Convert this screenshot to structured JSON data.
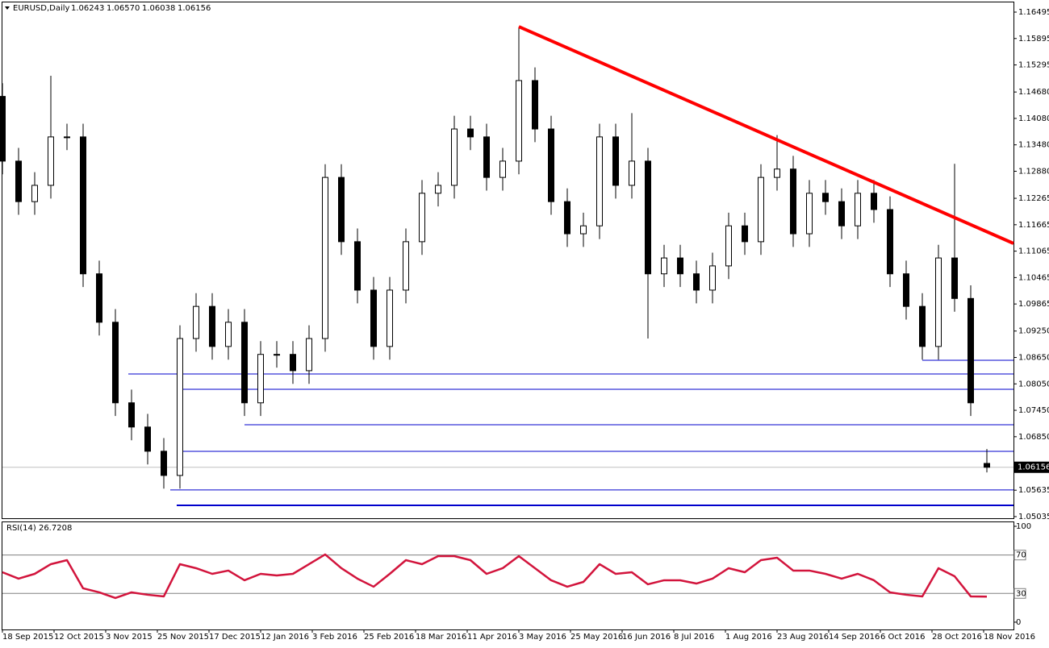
{
  "chart_data": [
    {
      "type": "candlestick",
      "title": "EURUSD,Daily",
      "quote": [
        "1.06243",
        "1.06570",
        "1.06038",
        "1.06156"
      ],
      "x": [
        0,
        5,
        10,
        15,
        20,
        25,
        30,
        35,
        40,
        45,
        50,
        55,
        60,
        65,
        70,
        75,
        80,
        85,
        90,
        95,
        100,
        105,
        110,
        115,
        120,
        125,
        130,
        135,
        140,
        145,
        150,
        155,
        160,
        165,
        170,
        175,
        180,
        185,
        190,
        195,
        200,
        205,
        210,
        215,
        220,
        225,
        230,
        235,
        240,
        245,
        250,
        255,
        260,
        265,
        270,
        275,
        280,
        285,
        290,
        295,
        300,
        305
      ],
      "open": [
        1.1458,
        1.1311,
        1.1219,
        1.1256,
        1.1366,
        1.1366,
        1.1055,
        1.0945,
        1.0762,
        1.0707,
        1.0652,
        1.0597,
        1.0908,
        1.0981,
        1.089,
        1.0945,
        1.0762,
        1.0872,
        1.0872,
        1.0835,
        1.0908,
        1.1274,
        1.1128,
        1.1018,
        1.089,
        1.1018,
        1.1128,
        1.1238,
        1.1256,
        1.1384,
        1.1366,
        1.1274,
        1.1311,
        1.1494,
        1.1384,
        1.1219,
        1.1146,
        1.1164,
        1.1366,
        1.1256,
        1.1311,
        1.1055,
        1.1091,
        1.1055,
        1.1018,
        1.1073,
        1.1164,
        1.1128,
        1.1274,
        1.1293,
        1.1146,
        1.1238,
        1.1219,
        1.1164,
        1.1238,
        1.1201,
        1.1055,
        1.0981,
        1.089,
        1.1091,
        1.0999,
        1.06243
      ],
      "high": [
        1.1488,
        1.1341,
        1.1286,
        1.1505,
        1.1396,
        1.1396,
        1.1085,
        1.0975,
        1.0792,
        1.0737,
        1.0682,
        1.0938,
        1.1011,
        1.1011,
        1.0975,
        1.0975,
        1.0902,
        1.0902,
        1.0902,
        1.0938,
        1.1304,
        1.1304,
        1.1158,
        1.1048,
        1.1048,
        1.1158,
        1.1268,
        1.1286,
        1.1414,
        1.1414,
        1.1396,
        1.1341,
        1.1616,
        1.1524,
        1.1414,
        1.1249,
        1.1194,
        1.1396,
        1.1396,
        1.142,
        1.1341,
        1.1121,
        1.1121,
        1.1085,
        1.1103,
        1.1194,
        1.1194,
        1.1304,
        1.137,
        1.1323,
        1.1268,
        1.1268,
        1.1249,
        1.1268,
        1.1268,
        1.1231,
        1.1085,
        1.1011,
        1.1121,
        1.1305,
        1.1029,
        1.0657
      ],
      "low": [
        1.1281,
        1.1189,
        1.1189,
        1.1226,
        1.1336,
        1.1025,
        1.0915,
        1.0732,
        1.0677,
        1.0622,
        1.0567,
        1.0567,
        1.0878,
        1.086,
        1.086,
        1.0732,
        1.0732,
        1.0842,
        1.0805,
        1.0805,
        1.0878,
        1.1098,
        1.0988,
        1.086,
        1.086,
        1.0988,
        1.1098,
        1.1208,
        1.1226,
        1.1336,
        1.1244,
        1.1244,
        1.1281,
        1.1354,
        1.1189,
        1.1116,
        1.1116,
        1.1134,
        1.1226,
        1.1226,
        1.0908,
        1.1025,
        1.1025,
        1.0988,
        1.0988,
        1.1043,
        1.1098,
        1.1098,
        1.1244,
        1.1116,
        1.1116,
        1.1189,
        1.1134,
        1.1134,
        1.1171,
        1.1025,
        1.0951,
        1.086,
        1.086,
        1.0969,
        1.0732,
        1.0604
      ],
      "close": [
        1.1311,
        1.1219,
        1.1256,
        1.1366,
        1.1366,
        1.1055,
        1.0945,
        1.0762,
        1.0707,
        1.0652,
        1.0597,
        1.0908,
        1.0981,
        1.089,
        1.0945,
        1.0762,
        1.0872,
        1.0872,
        1.0835,
        1.0908,
        1.1274,
        1.1128,
        1.1018,
        1.089,
        1.1018,
        1.1128,
        1.1238,
        1.1256,
        1.1384,
        1.1366,
        1.1274,
        1.1311,
        1.1494,
        1.1384,
        1.1219,
        1.1146,
        1.1164,
        1.1366,
        1.1256,
        1.1311,
        1.1055,
        1.1091,
        1.1055,
        1.1018,
        1.1073,
        1.1164,
        1.1128,
        1.1274,
        1.1293,
        1.1146,
        1.1238,
        1.1219,
        1.1164,
        1.1238,
        1.1201,
        1.1055,
        1.0981,
        1.089,
        1.1091,
        1.0999,
        1.0762,
        1.06156
      ],
      "xlim": [
        0,
        313.25
      ],
      "ylim": [
        1.04998,
        1.16715
      ],
      "yticks": [
        1.16495,
        1.15895,
        1.15295,
        {
          "value": 1.1468,
          "label": "1.14680"
        },
        {
          "value": 1.1408,
          "label": "1.14080"
        },
        {
          "value": 1.1348,
          "label": "1.13480"
        },
        {
          "value": 1.1288,
          "label": "1.12880"
        },
        1.12265,
        1.11665,
        1.11065,
        1.10465,
        1.09865,
        {
          "value": 1.0925,
          "label": "1.09250"
        },
        {
          "value": 1.0865,
          "label": "1.08650"
        },
        {
          "value": 1.0805,
          "label": "1.08050"
        },
        {
          "value": 1.0745,
          "label": "1.07450"
        },
        {
          "value": 1.0685,
          "label": "1.06850"
        },
        1.05635,
        1.05035
      ],
      "xticks": [
        {
          "value": 0,
          "label": "18 Sep 2015"
        },
        {
          "value": 16,
          "label": "12 Oct 2015"
        },
        {
          "value": 32,
          "label": "3 Nov 2015"
        },
        {
          "value": 48,
          "label": "25 Nov 2015"
        },
        {
          "value": 64,
          "label": "17 Dec 2015"
        },
        {
          "value": 80,
          "label": "12 Jan 2016"
        },
        {
          "value": 96,
          "label": "3 Feb 2016"
        },
        {
          "value": 112,
          "label": "25 Feb 2016"
        },
        {
          "value": 128,
          "label": "18 Mar 2016"
        },
        {
          "value": 144,
          "label": "11 Apr 2016"
        },
        {
          "value": 160,
          "label": "3 May 2016"
        },
        {
          "value": 176,
          "label": "25 May 2016"
        },
        {
          "value": 192,
          "label": "16 Jun 2016"
        },
        {
          "value": 208,
          "label": "8 Jul 2016"
        },
        {
          "value": 224,
          "label": "1 Aug 2016"
        },
        {
          "value": 240,
          "label": "23 Aug 2016"
        },
        {
          "value": 256,
          "label": "14 Sep 2016"
        },
        {
          "value": 272,
          "label": "6 Oct 2016"
        },
        {
          "value": 288,
          "label": "28 Oct 2016"
        },
        {
          "value": 304,
          "label": "18 Nov 2016"
        }
      ],
      "current_price": 1.06156,
      "trendline": {
        "color": "#ff0000",
        "x": [
          160,
          313.25
        ],
        "y": [
          1.16165,
          1.11241
        ]
      },
      "levels": [
        {
          "price": 1.08586,
          "start": 285
        },
        {
          "price": 1.08275,
          "start": 39
        },
        {
          "price": 1.07927,
          "start": 56
        },
        {
          "price": 1.07122,
          "start": 75
        },
        {
          "price": 1.06518,
          "start": 54
        },
        {
          "price": 1.0564,
          "start": 52
        },
        {
          "price": 1.05292,
          "start": 54,
          "style": "thick"
        }
      ],
      "level_color": "#0000cc"
    },
    {
      "type": "line",
      "title": "RSI(14) 26.7208",
      "color": "#d2143c",
      "x": [
        0,
        5,
        10,
        15,
        20,
        25,
        30,
        35,
        40,
        45,
        50,
        55,
        60,
        65,
        70,
        75,
        80,
        85,
        90,
        95,
        100,
        105,
        110,
        115,
        120,
        125,
        130,
        135,
        140,
        145,
        150,
        155,
        160,
        165,
        170,
        175,
        180,
        185,
        190,
        195,
        200,
        205,
        210,
        215,
        220,
        225,
        230,
        235,
        240,
        245,
        250,
        255,
        260,
        265,
        270,
        275,
        280,
        285,
        290,
        295,
        300,
        305
      ],
      "values": [
        52.1,
        45.4,
        50.4,
        60.5,
        64.7,
        35.3,
        31.1,
        25.2,
        31.1,
        28.6,
        26.9,
        60.5,
        56.3,
        50.4,
        53.8,
        43.7,
        50.4,
        48.7,
        50.4,
        60.5,
        70.6,
        56.3,
        45.4,
        37.0,
        50.4,
        64.7,
        60.5,
        68.9,
        68.9,
        64.7,
        50.4,
        56.3,
        68.9,
        56.3,
        43.7,
        37.0,
        42.0,
        60.5,
        50.4,
        52.1,
        39.5,
        43.7,
        43.7,
        40.3,
        45.4,
        56.3,
        52.1,
        64.7,
        67.2,
        53.8,
        53.8,
        50.4,
        45.4,
        50.4,
        43.7,
        31.1,
        28.6,
        26.9,
        56.3,
        47.9,
        26.9,
        26.7
      ],
      "xlim": [
        0,
        313.25
      ],
      "ylim": [
        -7.6,
        104.2
      ],
      "yticks": [
        100,
        70,
        30,
        0
      ],
      "levels": [
        70,
        30
      ]
    }
  ]
}
